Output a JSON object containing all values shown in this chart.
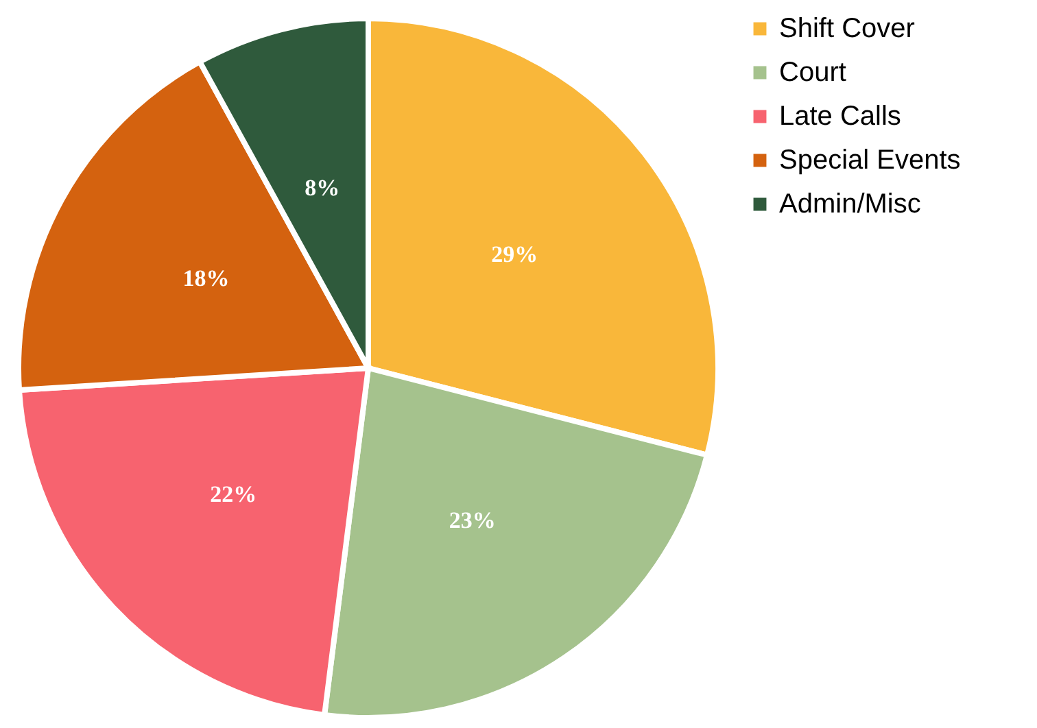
{
  "chart_data": {
    "type": "pie",
    "categories": [
      "Shift Cover",
      "Court",
      "Late Calls",
      "Special Events",
      "Admin/Misc"
    ],
    "values": [
      29,
      23,
      22,
      18,
      8
    ],
    "colors": [
      "#f9b73a",
      "#a5c28d",
      "#f7636f",
      "#d4620f",
      "#2f5a3c"
    ],
    "value_labels": [
      "29%",
      "23%",
      "22%",
      "18%",
      "8%"
    ],
    "legend": "right"
  }
}
